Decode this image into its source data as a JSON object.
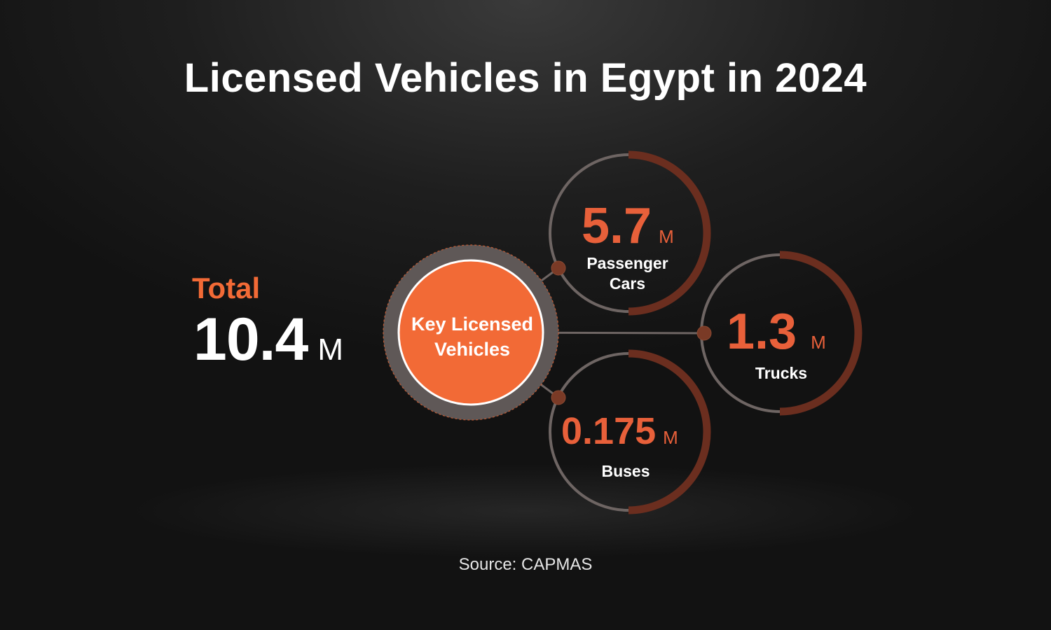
{
  "chart_data": {
    "type": "other",
    "title": "Licensed Vehicles in Egypt in 2024",
    "total": {
      "label": "Total",
      "value": 10.4,
      "display": "10.4",
      "unit": "M"
    },
    "center_label": "Key Licensed Vehicles",
    "categories": [
      "Passenger Cars",
      "Trucks",
      "Buses"
    ],
    "values": [
      5.7,
      1.3,
      0.175
    ],
    "unit": "M",
    "nodes": [
      {
        "display": "5.7",
        "unit": "M",
        "name_lines": [
          "Passenger",
          "Cars"
        ]
      },
      {
        "display": "1.3",
        "unit": "M",
        "name_lines": [
          "Trucks"
        ]
      },
      {
        "display": "0.175",
        "unit": "M",
        "name_lines": [
          "Buses"
        ]
      }
    ],
    "source": "Source: CAPMAS"
  },
  "colors": {
    "accent": "#f26a36",
    "value": "#e8603a",
    "ring_light": "#6e6563",
    "ring_dark": "#6b2e1f",
    "background": "#1a1a1a"
  }
}
